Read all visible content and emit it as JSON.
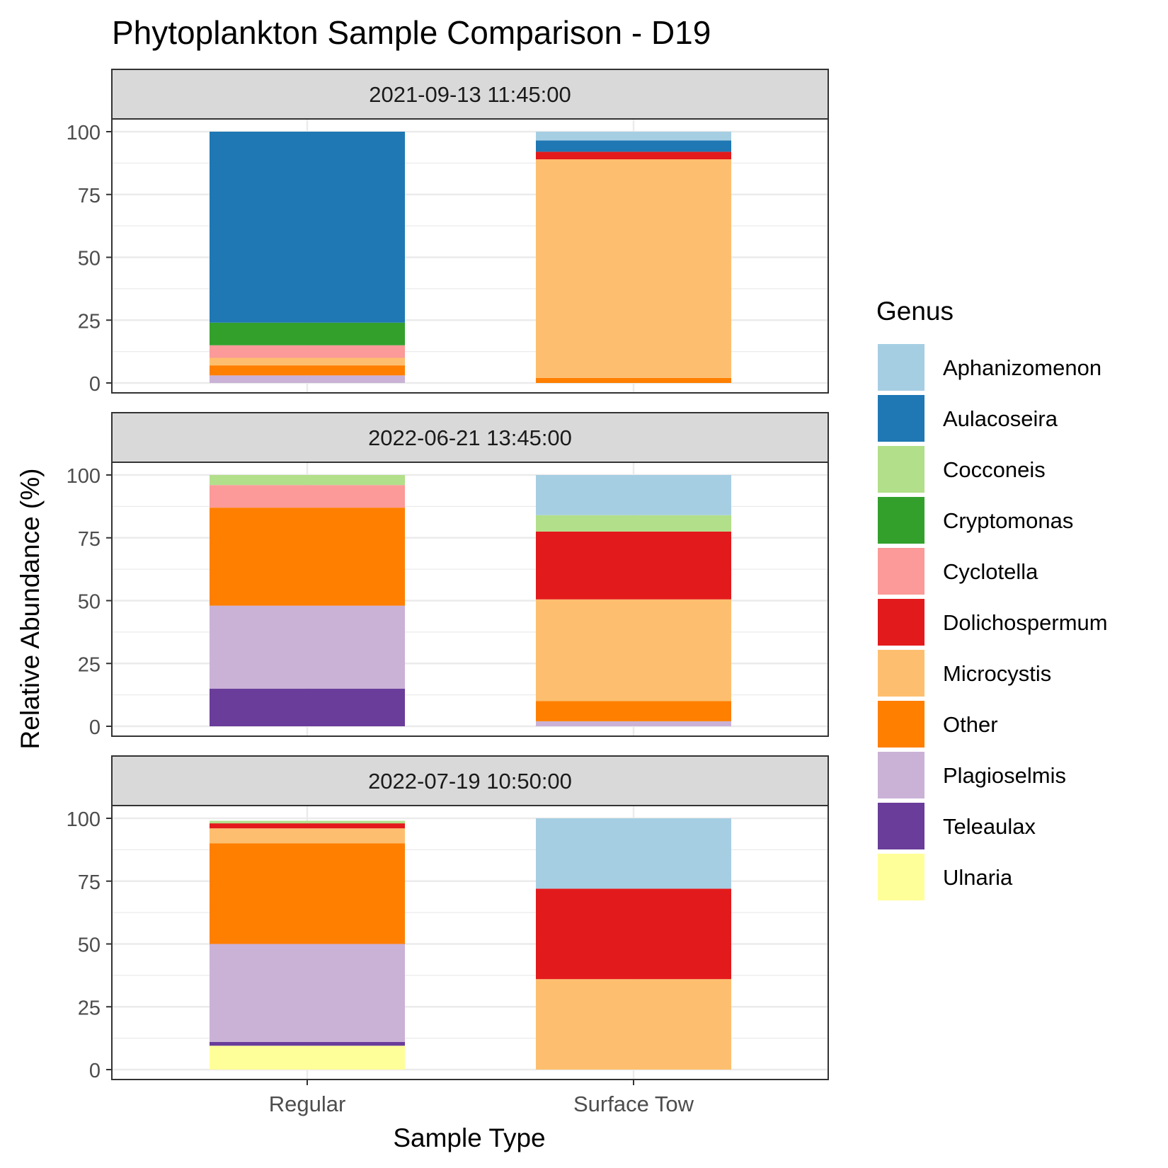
{
  "chart_data": {
    "type": "bar",
    "stacked": true,
    "title": "Phytoplankton Sample Comparison - D19",
    "xlabel": "Sample Type",
    "ylabel": "Relative Abundance (%)",
    "ylim": [
      0,
      100
    ],
    "y_ticks": [
      "0",
      "25",
      "50",
      "75",
      "100"
    ],
    "categories": [
      "Regular",
      "Surface Tow"
    ],
    "grid": true,
    "legend": {
      "title": "Genus",
      "position": "right",
      "entries": [
        {
          "name": "Aphanizomenon",
          "color": "#a6cee3"
        },
        {
          "name": "Aulacoseira",
          "color": "#1f78b4"
        },
        {
          "name": "Cocconeis",
          "color": "#b2df8a"
        },
        {
          "name": "Cryptomonas",
          "color": "#33a02c"
        },
        {
          "name": "Cyclotella",
          "color": "#fb9a99"
        },
        {
          "name": "Dolichospermum",
          "color": "#e31a1c"
        },
        {
          "name": "Microcystis",
          "color": "#fdbf6f"
        },
        {
          "name": "Other",
          "color": "#ff7f00"
        },
        {
          "name": "Plagioselmis",
          "color": "#cab2d6"
        },
        {
          "name": "Teleaulax",
          "color": "#6a3d9a"
        },
        {
          "name": "Ulnaria",
          "color": "#ffff99"
        }
      ]
    },
    "panels": [
      {
        "label": "2021-09-13 11:45:00",
        "bars": [
          {
            "category": "Regular",
            "segments": [
              {
                "genus": "Plagioselmis",
                "value": 3
              },
              {
                "genus": "Other",
                "value": 4
              },
              {
                "genus": "Microcystis",
                "value": 3
              },
              {
                "genus": "Cyclotella",
                "value": 5
              },
              {
                "genus": "Cryptomonas",
                "value": 9
              },
              {
                "genus": "Aulacoseira",
                "value": 76
              }
            ]
          },
          {
            "category": "Surface Tow",
            "segments": [
              {
                "genus": "Other",
                "value": 2
              },
              {
                "genus": "Microcystis",
                "value": 87
              },
              {
                "genus": "Dolichospermum",
                "value": 3
              },
              {
                "genus": "Aulacoseira",
                "value": 4.5
              },
              {
                "genus": "Aphanizomenon",
                "value": 3.5
              }
            ]
          }
        ]
      },
      {
        "label": "2022-06-21 13:45:00",
        "bars": [
          {
            "category": "Regular",
            "segments": [
              {
                "genus": "Teleaulax",
                "value": 15
              },
              {
                "genus": "Plagioselmis",
                "value": 33
              },
              {
                "genus": "Other",
                "value": 39
              },
              {
                "genus": "Cyclotella",
                "value": 9
              },
              {
                "genus": "Cocconeis",
                "value": 4
              }
            ]
          },
          {
            "category": "Surface Tow",
            "segments": [
              {
                "genus": "Plagioselmis",
                "value": 2
              },
              {
                "genus": "Other",
                "value": 8
              },
              {
                "genus": "Microcystis",
                "value": 40.5
              },
              {
                "genus": "Dolichospermum",
                "value": 27
              },
              {
                "genus": "Cocconeis",
                "value": 6.5
              },
              {
                "genus": "Aphanizomenon",
                "value": 16
              }
            ]
          }
        ]
      },
      {
        "label": "2022-07-19 10:50:00",
        "bars": [
          {
            "category": "Regular",
            "segments": [
              {
                "genus": "Ulnaria",
                "value": 9.5
              },
              {
                "genus": "Teleaulax",
                "value": 1.5
              },
              {
                "genus": "Plagioselmis",
                "value": 39
              },
              {
                "genus": "Other",
                "value": 40
              },
              {
                "genus": "Microcystis",
                "value": 6
              },
              {
                "genus": "Dolichospermum",
                "value": 2
              },
              {
                "genus": "Cocconeis",
                "value": 1
              }
            ]
          },
          {
            "category": "Surface Tow",
            "segments": [
              {
                "genus": "Microcystis",
                "value": 36
              },
              {
                "genus": "Dolichospermum",
                "value": 36
              },
              {
                "genus": "Aphanizomenon",
                "value": 28
              }
            ]
          }
        ]
      }
    ]
  }
}
